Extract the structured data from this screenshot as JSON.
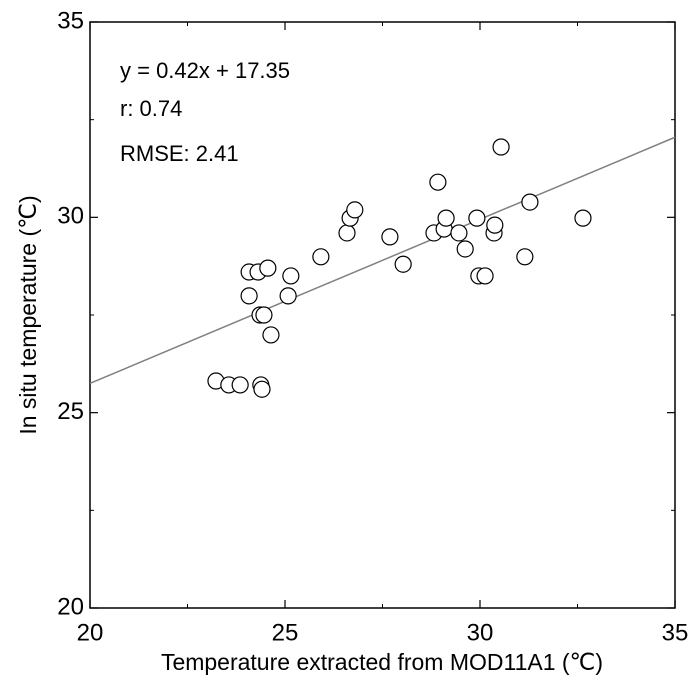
{
  "chart_data": {
    "type": "scatter",
    "x_label": "Temperature extracted from MOD11A1 (℃)",
    "y_label": "In situ temperature (℃)",
    "annotations": [
      "y = 0.42x + 17.35",
      "r: 0.74",
      "RMSE: 2.41"
    ],
    "fit": {
      "slope": 0.42,
      "intercept": 17.35,
      "color": "#808080"
    },
    "x": [
      23.23,
      23.56,
      23.85,
      24.38,
      24.41,
      24.08,
      24.31,
      24.56,
      24.08,
      24.36,
      24.46,
      24.64,
      25.08,
      25.15,
      25.92,
      26.59,
      26.67,
      26.79,
      27.69,
      28.03,
      28.82,
      28.92,
      29.08,
      29.13,
      29.46,
      29.62,
      29.92,
      29.97,
      30.13,
      30.36,
      30.38,
      30.54,
      31.15,
      31.28,
      32.64
    ],
    "values": [
      25.81,
      25.71,
      25.71,
      25.71,
      25.6,
      28.6,
      28.6,
      28.7,
      27.99,
      27.5,
      27.5,
      26.99,
      27.99,
      28.5,
      28.99,
      29.6,
      29.98,
      30.19,
      29.5,
      28.8,
      29.6,
      30.9,
      29.7,
      29.98,
      29.6,
      29.19,
      29.98,
      28.5,
      28.5,
      29.6,
      29.8,
      31.8,
      28.99,
      30.39,
      29.98
    ],
    "color": "#000000",
    "xlim": [
      20,
      35
    ],
    "ylim": [
      20,
      35
    ],
    "xticks": [
      20,
      25,
      30,
      35
    ],
    "yticks": [
      20,
      25,
      30,
      35
    ],
    "xminorticks": [
      22.5,
      27.5,
      32.5
    ],
    "yminorticks": [
      22.5,
      27.5,
      32.5
    ],
    "grid": false
  }
}
